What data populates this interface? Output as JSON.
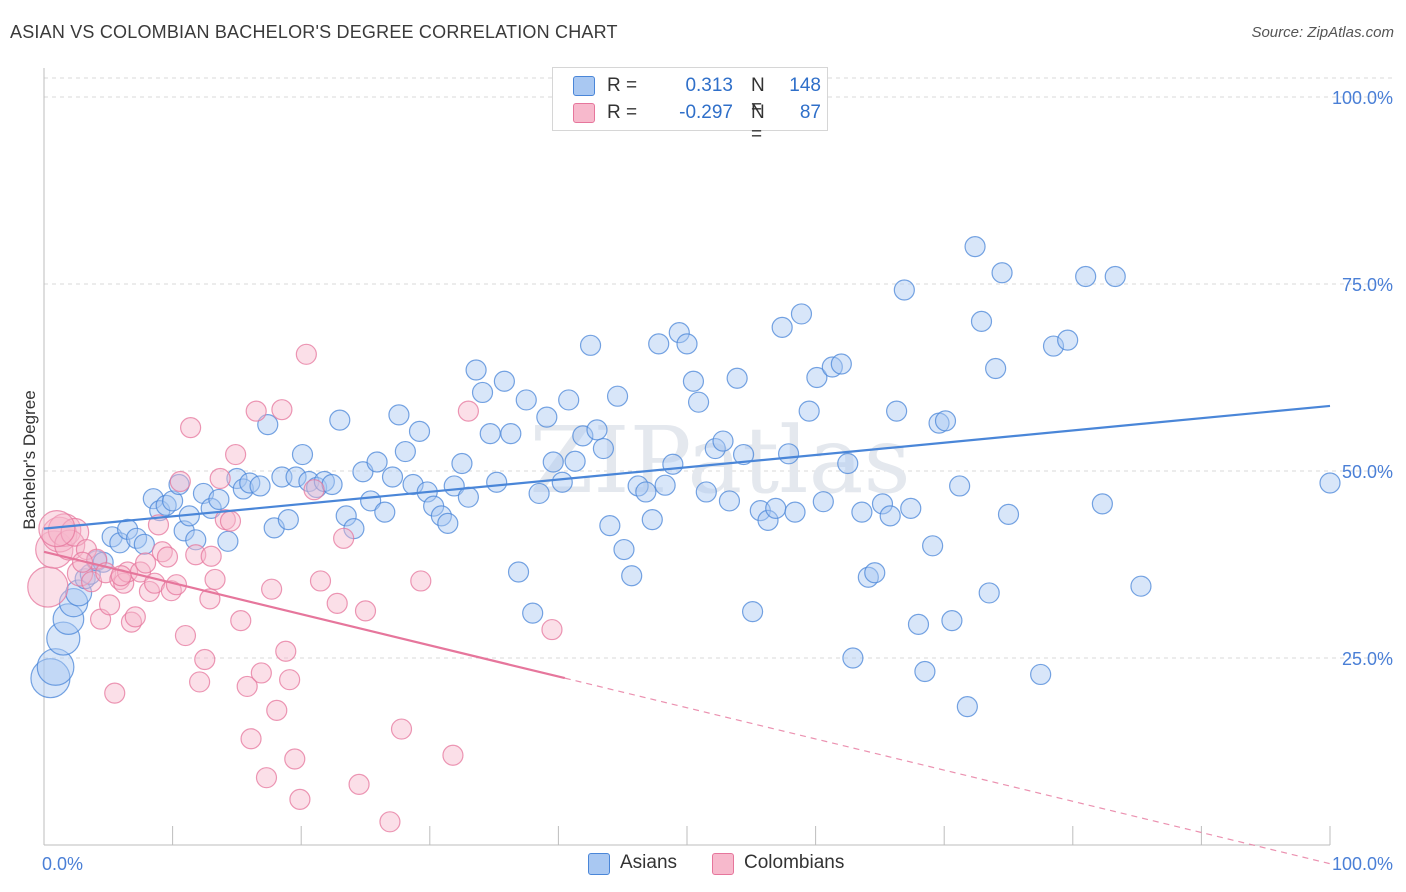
{
  "header": {
    "title": "ASIAN VS COLOMBIAN BACHELOR'S DEGREE CORRELATION CHART",
    "source": "Source: ZipAtlas.com"
  },
  "watermark": "ZIPatlas",
  "legend_top": {
    "rows": [
      {
        "r_label": "R =",
        "r_value": "0.313",
        "n_label": "N =",
        "n_value": "148",
        "color": "#a9c8f2"
      },
      {
        "r_label": "R =",
        "r_value": "-0.297",
        "n_label": "N =",
        "n_value": "87",
        "color": "#f7b9cc"
      }
    ]
  },
  "legend_bottom": {
    "items": [
      {
        "label": "Asians",
        "color": "#a9c8f2"
      },
      {
        "label": "Colombians",
        "color": "#f7b9cc"
      }
    ]
  },
  "chart_data": {
    "type": "scatter",
    "title": "ASIAN VS COLOMBIAN BACHELOR'S DEGREE CORRELATION CHART",
    "xlabel": "",
    "ylabel": "Bachelor's Degree",
    "xlim": [
      0,
      100
    ],
    "ylim": [
      0,
      100
    ],
    "x_tick_labels": [
      "0.0%",
      "100.0%"
    ],
    "y_ticks": [
      25,
      50,
      75,
      100
    ],
    "y_tick_labels": [
      "25.0%",
      "50.0%",
      "75.0%",
      "100.0%"
    ],
    "grid": true,
    "legend": "top-center",
    "series": [
      {
        "name": "Asians",
        "color": "#4a86d8",
        "fill": "#a9c8f2",
        "r": 0.313,
        "n": 148,
        "trend": {
          "x0": 0,
          "y0": 42.3,
          "x1": 100,
          "y1": 58.7,
          "solid_to": 100
        },
        "points": [
          [
            0.5,
            22.3
          ],
          [
            0.9,
            23.8
          ],
          [
            1.5,
            27.6
          ],
          [
            1.9,
            30.2
          ],
          [
            2.3,
            32.4
          ],
          [
            2.7,
            33.7
          ],
          [
            3.2,
            35.6
          ],
          [
            3.6,
            36.2
          ],
          [
            4.1,
            38.0
          ],
          [
            4.6,
            37.8
          ],
          [
            5.3,
            41.2
          ],
          [
            5.9,
            40.4
          ],
          [
            6.5,
            42.2
          ],
          [
            7.2,
            41.0
          ],
          [
            7.8,
            40.2
          ],
          [
            8.5,
            46.3
          ],
          [
            9.0,
            44.7
          ],
          [
            9.5,
            45.4
          ],
          [
            10.0,
            46.0
          ],
          [
            10.5,
            48.2
          ],
          [
            10.9,
            42.0
          ],
          [
            11.3,
            44.0
          ],
          [
            11.8,
            40.8
          ],
          [
            12.4,
            47.0
          ],
          [
            13.0,
            45.0
          ],
          [
            13.6,
            46.2
          ],
          [
            14.3,
            40.6
          ],
          [
            15.0,
            49.0
          ],
          [
            15.5,
            47.6
          ],
          [
            16.0,
            48.4
          ],
          [
            16.8,
            48.0
          ],
          [
            17.4,
            56.2
          ],
          [
            17.9,
            42.4
          ],
          [
            18.5,
            49.2
          ],
          [
            19.0,
            43.5
          ],
          [
            19.6,
            49.2
          ],
          [
            20.1,
            52.2
          ],
          [
            20.6,
            48.6
          ],
          [
            21.2,
            47.8
          ],
          [
            21.8,
            48.6
          ],
          [
            22.4,
            48.2
          ],
          [
            23.0,
            56.8
          ],
          [
            23.5,
            44.0
          ],
          [
            24.1,
            42.3
          ],
          [
            24.8,
            49.9
          ],
          [
            25.4,
            46.0
          ],
          [
            25.9,
            51.2
          ],
          [
            26.5,
            44.5
          ],
          [
            27.1,
            49.2
          ],
          [
            27.6,
            57.5
          ],
          [
            28.1,
            52.6
          ],
          [
            28.7,
            48.2
          ],
          [
            29.2,
            55.3
          ],
          [
            29.8,
            47.2
          ],
          [
            30.3,
            45.3
          ],
          [
            30.9,
            44.0
          ],
          [
            31.4,
            43.0
          ],
          [
            31.9,
            48.0
          ],
          [
            32.5,
            51.0
          ],
          [
            33.0,
            46.5
          ],
          [
            33.6,
            63.5
          ],
          [
            34.1,
            60.5
          ],
          [
            34.7,
            55.0
          ],
          [
            35.2,
            48.5
          ],
          [
            35.8,
            62.0
          ],
          [
            36.3,
            55.0
          ],
          [
            36.9,
            36.5
          ],
          [
            37.5,
            59.5
          ],
          [
            38.0,
            31.0
          ],
          [
            38.5,
            47.0
          ],
          [
            39.1,
            57.2
          ],
          [
            39.6,
            51.2
          ],
          [
            40.3,
            48.5
          ],
          [
            40.8,
            59.5
          ],
          [
            41.3,
            51.3
          ],
          [
            41.9,
            54.7
          ],
          [
            42.5,
            66.8
          ],
          [
            43.0,
            55.5
          ],
          [
            43.5,
            53.0
          ],
          [
            44.0,
            42.7
          ],
          [
            44.6,
            60.0
          ],
          [
            45.1,
            39.5
          ],
          [
            45.7,
            36.0
          ],
          [
            46.2,
            48.0
          ],
          [
            46.8,
            47.2
          ],
          [
            47.3,
            43.5
          ],
          [
            47.8,
            67.0
          ],
          [
            48.3,
            48.1
          ],
          [
            48.9,
            50.9
          ],
          [
            49.4,
            68.5
          ],
          [
            50.0,
            67.0
          ],
          [
            50.5,
            62.0
          ],
          [
            50.9,
            59.2
          ],
          [
            51.5,
            47.2
          ],
          [
            52.2,
            53.0
          ],
          [
            52.8,
            54.0
          ],
          [
            53.3,
            46.0
          ],
          [
            53.9,
            62.4
          ],
          [
            54.4,
            52.2
          ],
          [
            55.1,
            31.2
          ],
          [
            55.7,
            44.7
          ],
          [
            56.3,
            43.4
          ],
          [
            56.9,
            45.0
          ],
          [
            57.4,
            69.2
          ],
          [
            57.9,
            52.3
          ],
          [
            58.4,
            44.5
          ],
          [
            58.9,
            71.0
          ],
          [
            59.5,
            58.0
          ],
          [
            60.1,
            62.5
          ],
          [
            60.6,
            45.9
          ],
          [
            61.3,
            63.9
          ],
          [
            62.0,
            64.3
          ],
          [
            62.5,
            51.0
          ],
          [
            62.9,
            25.0
          ],
          [
            63.6,
            44.5
          ],
          [
            64.1,
            35.8
          ],
          [
            64.6,
            36.4
          ],
          [
            65.2,
            45.6
          ],
          [
            65.8,
            44.0
          ],
          [
            66.3,
            58.0
          ],
          [
            66.9,
            74.2
          ],
          [
            67.4,
            45.0
          ],
          [
            68.0,
            29.5
          ],
          [
            68.5,
            23.2
          ],
          [
            69.1,
            40.0
          ],
          [
            69.6,
            56.4
          ],
          [
            70.1,
            56.7
          ],
          [
            70.6,
            30.0
          ],
          [
            71.2,
            48.0
          ],
          [
            71.8,
            18.5
          ],
          [
            72.4,
            80.0
          ],
          [
            72.9,
            70.0
          ],
          [
            73.5,
            33.7
          ],
          [
            74.0,
            63.7
          ],
          [
            74.5,
            76.5
          ],
          [
            75.0,
            44.2
          ],
          [
            77.5,
            22.8
          ],
          [
            78.5,
            66.7
          ],
          [
            79.6,
            67.5
          ],
          [
            81.0,
            76.0
          ],
          [
            82.3,
            45.6
          ],
          [
            83.3,
            76.0
          ],
          [
            85.3,
            34.6
          ],
          [
            100.0,
            48.4
          ]
        ]
      },
      {
        "name": "Colombians",
        "color": "#e6769c",
        "fill": "#f7b9cc",
        "r": -0.297,
        "n": 87,
        "trend": {
          "x0": 0,
          "y0": 39.2,
          "x1": 100,
          "y1": -2.5,
          "solid_to": 40.5
        },
        "points": [
          [
            0.3,
            34.5
          ],
          [
            0.8,
            39.5
          ],
          [
            1.2,
            41.5
          ],
          [
            1.6,
            42.1
          ],
          [
            2.0,
            40.1
          ],
          [
            2.4,
            41.8
          ],
          [
            2.8,
            36.3
          ],
          [
            3.3,
            39.5
          ],
          [
            3.7,
            35.2
          ],
          [
            4.1,
            38.2
          ],
          [
            4.4,
            30.2
          ],
          [
            4.8,
            36.4
          ],
          [
            5.1,
            32.1
          ],
          [
            5.5,
            20.3
          ],
          [
            5.9,
            35.5
          ],
          [
            6.2,
            35.0
          ],
          [
            6.5,
            36.5
          ],
          [
            6.8,
            29.8
          ],
          [
            7.1,
            30.5
          ],
          [
            7.5,
            36.5
          ],
          [
            7.9,
            37.7
          ],
          [
            8.2,
            33.9
          ],
          [
            8.6,
            35.0
          ],
          [
            8.9,
            42.8
          ],
          [
            9.2,
            39.2
          ],
          [
            9.6,
            38.5
          ],
          [
            9.9,
            34.0
          ],
          [
            10.3,
            34.8
          ],
          [
            10.6,
            48.6
          ],
          [
            11.0,
            28.0
          ],
          [
            11.4,
            55.8
          ],
          [
            11.8,
            38.8
          ],
          [
            12.1,
            21.8
          ],
          [
            12.5,
            24.8
          ],
          [
            12.9,
            32.9
          ],
          [
            13.3,
            35.5
          ],
          [
            13.7,
            49.0
          ],
          [
            14.1,
            43.5
          ],
          [
            14.5,
            43.3
          ],
          [
            14.9,
            52.2
          ],
          [
            15.3,
            30.0
          ],
          [
            15.8,
            21.2
          ],
          [
            16.1,
            14.2
          ],
          [
            16.5,
            58.0
          ],
          [
            16.9,
            23.0
          ],
          [
            17.3,
            9.0
          ],
          [
            17.7,
            34.2
          ],
          [
            18.1,
            18.0
          ],
          [
            18.5,
            58.2
          ],
          [
            18.8,
            25.9
          ],
          [
            19.1,
            22.1
          ],
          [
            19.5,
            11.5
          ],
          [
            19.9,
            6.1
          ],
          [
            20.4,
            65.6
          ],
          [
            21.0,
            47.5
          ],
          [
            21.5,
            35.3
          ],
          [
            22.8,
            32.3
          ],
          [
            23.3,
            41.0
          ],
          [
            24.5,
            8.1
          ],
          [
            25.0,
            31.3
          ],
          [
            26.9,
            3.1
          ],
          [
            27.8,
            15.5
          ],
          [
            29.3,
            35.3
          ],
          [
            31.8,
            12.0
          ],
          [
            33.0,
            58.0
          ],
          [
            39.5,
            28.8
          ],
          [
            1.0,
            42.3
          ],
          [
            3.0,
            37.8
          ],
          [
            6.0,
            36.0
          ],
          [
            13.0,
            38.6
          ]
        ]
      }
    ]
  }
}
